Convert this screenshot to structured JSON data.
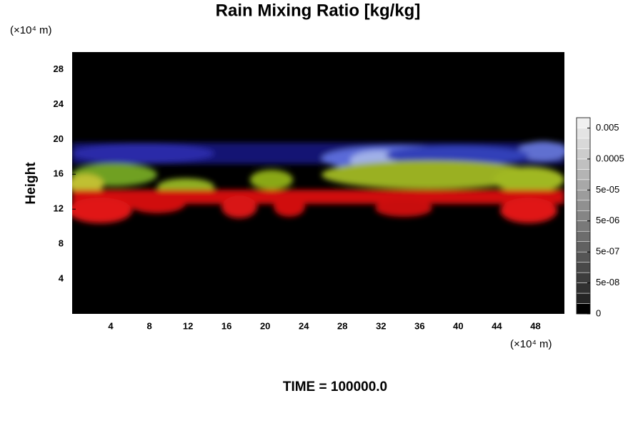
{
  "chart_data": {
    "type": "heatmap",
    "title": "Rain Mixing Ratio [kg/kg]",
    "x_unit": "(×10⁴ m)",
    "y_unit": "(×10⁴ m)",
    "ylabel": "Height",
    "annotation": "TIME = 100000.0",
    "xlim": [
      0,
      51
    ],
    "xticks": [
      4,
      8,
      12,
      16,
      20,
      24,
      28,
      32,
      36,
      40,
      44,
      48
    ],
    "ylim": [
      0,
      30
    ],
    "yticks": [
      4,
      8,
      12,
      16,
      20,
      24,
      28
    ],
    "colorbar_ticks": [
      0,
      {
        "value": 5e-08,
        "label": "5e-08"
      },
      {
        "value": 5e-07,
        "label": "5e-07"
      },
      {
        "value": 5e-06,
        "label": "5e-06"
      },
      {
        "value": 5e-05,
        "label": "5e-05"
      },
      0.0005,
      0.005
    ]
  }
}
